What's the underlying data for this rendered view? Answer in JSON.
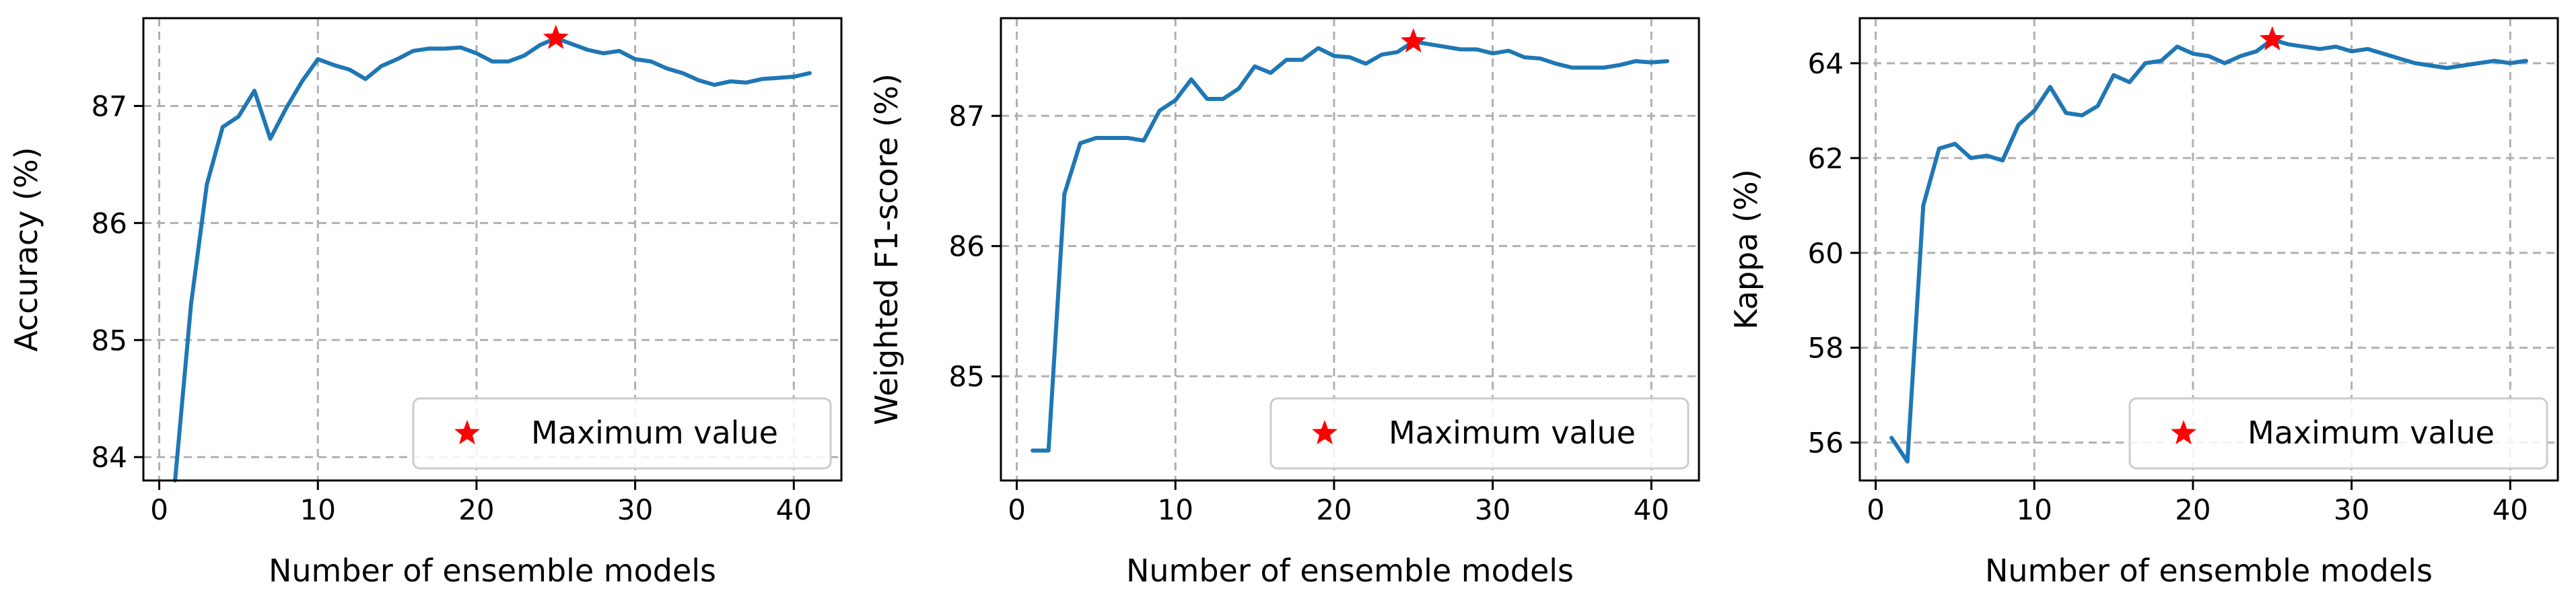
{
  "figure": {
    "line_color": "#1f77b4",
    "marker_color": "#ff0000",
    "grid_color": "#b0b0b0",
    "legend_label": "Maximum value"
  },
  "chart_data": [
    {
      "type": "line",
      "xlabel": "Number of ensemble models",
      "ylabel": "Accuracy (%)",
      "xlim": [
        -1,
        43
      ],
      "ylim": [
        83.8,
        87.75
      ],
      "xticks": [
        0,
        10,
        20,
        30,
        40
      ],
      "yticks": [
        84,
        85,
        86,
        87
      ],
      "grid": true,
      "legend_position": "lower-right",
      "series": [
        {
          "x": [
            1,
            2,
            3,
            4,
            5,
            6,
            7,
            8,
            9,
            10,
            11,
            12,
            13,
            14,
            15,
            16,
            17,
            18,
            19,
            20,
            21,
            22,
            23,
            24,
            25,
            26,
            27,
            28,
            29,
            30,
            31,
            32,
            33,
            34,
            35,
            36,
            37,
            38,
            39,
            40,
            41
          ],
          "values": [
            83.8,
            85.3,
            86.33,
            86.82,
            86.91,
            87.13,
            86.72,
            86.98,
            87.21,
            87.4,
            87.35,
            87.31,
            87.23,
            87.34,
            87.4,
            87.47,
            87.49,
            87.49,
            87.5,
            87.45,
            87.38,
            87.38,
            87.43,
            87.52,
            87.58,
            87.53,
            87.48,
            87.45,
            87.47,
            87.4,
            87.38,
            87.32,
            87.28,
            87.22,
            87.18,
            87.21,
            87.2,
            87.23,
            87.24,
            87.25,
            87.28
          ]
        }
      ],
      "max_point": {
        "x": 25,
        "y": 87.58
      }
    },
    {
      "type": "line",
      "xlabel": "Number of ensemble models",
      "ylabel": "Weighted F1-score (%)",
      "xlim": [
        -1,
        43
      ],
      "ylim": [
        84.2,
        87.75
      ],
      "xticks": [
        0,
        10,
        20,
        30,
        40
      ],
      "yticks": [
        85,
        86,
        87
      ],
      "grid": true,
      "legend_position": "lower-right",
      "series": [
        {
          "x": [
            1,
            2,
            3,
            4,
            5,
            6,
            7,
            8,
            9,
            10,
            11,
            12,
            13,
            14,
            15,
            16,
            17,
            18,
            19,
            20,
            21,
            22,
            23,
            24,
            25,
            26,
            27,
            28,
            29,
            30,
            31,
            32,
            33,
            34,
            35,
            36,
            37,
            38,
            39,
            40,
            41
          ],
          "values": [
            84.43,
            84.43,
            86.4,
            86.79,
            86.83,
            86.83,
            86.83,
            86.81,
            87.04,
            87.12,
            87.28,
            87.13,
            87.13,
            87.21,
            87.38,
            87.33,
            87.43,
            87.43,
            87.52,
            87.46,
            87.45,
            87.4,
            87.47,
            87.49,
            87.57,
            87.55,
            87.53,
            87.51,
            87.51,
            87.48,
            87.5,
            87.45,
            87.44,
            87.4,
            87.37,
            87.37,
            87.37,
            87.39,
            87.42,
            87.41,
            87.42
          ]
        }
      ],
      "max_point": {
        "x": 25,
        "y": 87.57
      }
    },
    {
      "type": "line",
      "xlabel": "Number of ensemble models",
      "ylabel": "Kappa (%)",
      "xlim": [
        -1,
        43
      ],
      "ylim": [
        55.2,
        64.95
      ],
      "xticks": [
        0,
        10,
        20,
        30,
        40
      ],
      "yticks": [
        56,
        58,
        60,
        62,
        64
      ],
      "grid": true,
      "legend_position": "lower-right",
      "series": [
        {
          "x": [
            1,
            2,
            3,
            4,
            5,
            6,
            7,
            8,
            9,
            10,
            11,
            12,
            13,
            14,
            15,
            16,
            17,
            18,
            19,
            20,
            21,
            22,
            23,
            24,
            25,
            26,
            27,
            28,
            29,
            30,
            31,
            32,
            33,
            34,
            35,
            36,
            37,
            38,
            39,
            40,
            41
          ],
          "values": [
            56.1,
            55.6,
            61.0,
            62.2,
            62.3,
            62.0,
            62.05,
            61.95,
            62.7,
            63.0,
            63.5,
            62.95,
            62.9,
            63.1,
            63.75,
            63.6,
            64.0,
            64.05,
            64.35,
            64.2,
            64.15,
            64.0,
            64.15,
            64.25,
            64.5,
            64.4,
            64.35,
            64.3,
            64.35,
            64.25,
            64.3,
            64.2,
            64.1,
            64.0,
            63.95,
            63.9,
            63.95,
            64.0,
            64.05,
            64.0,
            64.05
          ]
        }
      ],
      "max_point": {
        "x": 25,
        "y": 64.5
      }
    }
  ]
}
